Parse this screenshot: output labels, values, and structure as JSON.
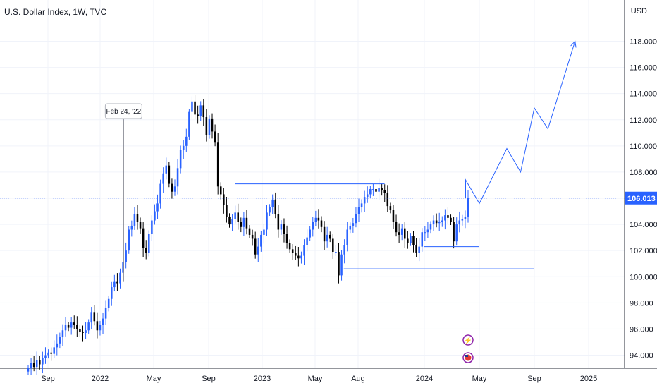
{
  "chart_data": {
    "type": "candlestick",
    "title": "U.S. Dollar Index, 1W, TVC",
    "currency": "USD",
    "ylim": [
      92.8,
      120.4
    ],
    "y_ticks": [
      "94.000",
      "96.000",
      "98.000",
      "100.000",
      "102.000",
      "104.000",
      "106.000",
      "108.000",
      "110.000",
      "112.000",
      "114.000",
      "116.000",
      "118.000"
    ],
    "y_tick_values": [
      94,
      96,
      98,
      100,
      102,
      104,
      106,
      108,
      110,
      112,
      114,
      116,
      118
    ],
    "x_ticks": [
      "Sep",
      "2022",
      "May",
      "Sep",
      "2023",
      "May",
      "Aug",
      "2024",
      "May",
      "Sep",
      "2025"
    ],
    "x_tick_dates": [
      "2021-09",
      "2022-01",
      "2022-05",
      "2022-09",
      "2023-01",
      "2023-05",
      "2023-08",
      "2024-01",
      "2024-05",
      "2024-09",
      "2025-01"
    ],
    "last_price": "106.013",
    "last_price_value": 106.013,
    "annotation": "Feb 24, '22",
    "annotation_date": "2022-02-24",
    "up_color": "#2962ff",
    "down_color": "#000000",
    "guide_color": "#2962ff",
    "resistance_level": 107.1,
    "resistance_range": [
      "2022-11",
      "2023-10"
    ],
    "support_levels": [
      {
        "value": 102.3,
        "range": [
          "2024-01",
          "2024-05"
        ]
      },
      {
        "value": 100.6,
        "range": [
          "2023-07",
          "2024-09"
        ]
      }
    ],
    "projection_path": [
      {
        "x": "2024-04",
        "y": 106.0
      },
      {
        "x": "2024-04",
        "y": 107.4
      },
      {
        "x": "2024-05",
        "y": 105.6
      },
      {
        "x": "2024-07",
        "y": 109.8
      },
      {
        "x": "2024-08",
        "y": 108.0
      },
      {
        "x": "2024-09",
        "y": 112.9
      },
      {
        "x": "2024-10",
        "y": 111.3
      },
      {
        "x": "2024-12",
        "y": 118.0
      }
    ],
    "closes": [
      93.0,
      93.4,
      93.1,
      93.6,
      93.3,
      93.8,
      94.0,
      94.2,
      94.1,
      94.6,
      94.9,
      95.4,
      95.9,
      96.3,
      96.1,
      96.5,
      96.3,
      96.0,
      95.8,
      95.7,
      95.9,
      96.5,
      97.3,
      96.6,
      95.9,
      96.3,
      96.8,
      97.6,
      98.3,
      99.2,
      99.6,
      99.5,
      100.3,
      101.1,
      102.0,
      103.6,
      103.9,
      104.8,
      104.2,
      103.7,
      102.2,
      101.8,
      103.3,
      104.3,
      105.0,
      105.6,
      107.1,
      107.9,
      108.5,
      107.1,
      106.5,
      106.9,
      108.3,
      109.7,
      110.0,
      110.7,
      112.6,
      113.4,
      112.4,
      112.3,
      113.1,
      112.2,
      110.8,
      112.1,
      111.1,
      110.3,
      106.9,
      106.3,
      105.5,
      104.6,
      104.0,
      104.4,
      104.9,
      104.2,
      103.8,
      104.5,
      103.7,
      103.2,
      102.9,
      101.7,
      102.3,
      103.2,
      103.6,
      104.9,
      105.3,
      105.9,
      104.8,
      103.6,
      104.0,
      103.3,
      102.6,
      102.1,
      101.8,
      101.6,
      101.4,
      101.6,
      102.4,
      103.0,
      103.6,
      104.2,
      104.5,
      104.3,
      103.8,
      102.7,
      103.2,
      102.9,
      101.9,
      101.9,
      100.1,
      101.7,
      102.4,
      103.6,
      103.9,
      104.1,
      104.8,
      105.3,
      105.6,
      106.1,
      106.3,
      106.7,
      106.7,
      106.5,
      106.8,
      106.6,
      106.4,
      105.4,
      105.1,
      104.2,
      103.4,
      103.2,
      103.7,
      102.9,
      102.6,
      103.1,
      102.4,
      101.8,
      102.3,
      103.4,
      103.4,
      103.6,
      104.0,
      104.3,
      104.1,
      104.2,
      104.3,
      104.7,
      104.5,
      104.2,
      102.7,
      104.0,
      104.3,
      104.4,
      104.6,
      106.0
    ]
  }
}
